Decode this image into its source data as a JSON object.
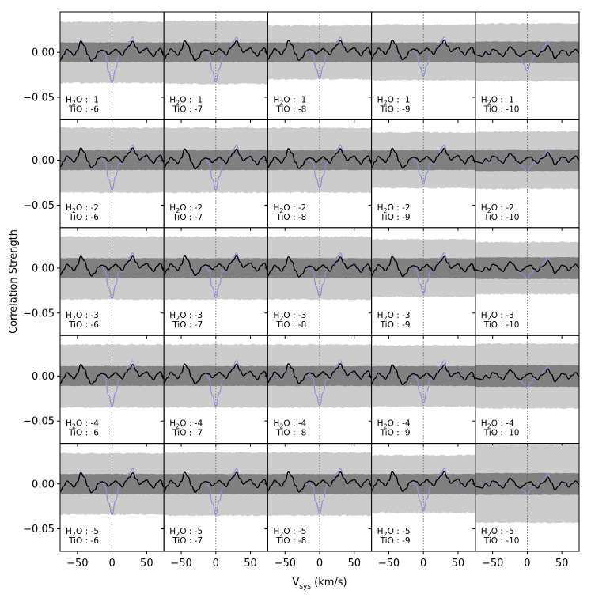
{
  "chart_data": {
    "type": "line",
    "grid": {
      "rows": 5,
      "cols": 5
    },
    "xlabel": "V",
    "xlabel_subscript": "sys",
    "xlabel_unit": " (km/s)",
    "ylabel": "Correlation Strength",
    "xlim": [
      -75,
      75
    ],
    "ylim": [
      -0.075,
      0.045
    ],
    "xticks": [
      -50,
      0,
      50
    ],
    "xtick_labels": [
      "−50",
      "0",
      "50"
    ],
    "yticks": [
      0.0,
      -0.05
    ],
    "ytick_labels": [
      "0.00",
      "−0.05"
    ],
    "marker_line_x": 0,
    "colors": {
      "outer_band": "#cccccc",
      "inner_band": "#808080",
      "observed_line": "#000000",
      "model_line": "#8f8fd6",
      "marker_line": "#555555"
    },
    "panel_label_prefix_1": "H",
    "panel_label_sub": "2",
    "panel_label_prefix_2": "O : ",
    "panel_label_tio": "TiO : ",
    "row_h2o": [
      "-1",
      "-2",
      "-3",
      "-4",
      "-5"
    ],
    "col_tio": [
      "-6",
      "-7",
      "-8",
      "-9",
      "-10"
    ],
    "outer_band_half_width": [
      [
        0.034,
        0.035,
        0.03,
        0.031,
        0.032
      ],
      [
        0.036,
        0.036,
        0.036,
        0.031,
        0.032
      ],
      [
        0.035,
        0.035,
        0.035,
        0.032,
        0.029
      ],
      [
        0.035,
        0.035,
        0.035,
        0.034,
        0.036
      ],
      [
        0.034,
        0.035,
        0.035,
        0.032,
        0.043
      ]
    ],
    "inner_band_half_width": [
      0.011,
      0.011,
      0.011,
      0.011,
      0.012
    ],
    "model_trough_depth": [
      [
        -0.034,
        -0.033,
        -0.029,
        -0.026,
        -0.021
      ],
      [
        -0.033,
        -0.033,
        -0.031,
        -0.026,
        -0.013
      ],
      [
        -0.034,
        -0.033,
        -0.032,
        -0.028,
        -0.012
      ],
      [
        -0.034,
        -0.034,
        -0.033,
        -0.03,
        -0.014
      ],
      [
        -0.034,
        -0.034,
        -0.033,
        -0.03,
        -0.012
      ]
    ],
    "observed_x": [
      -75,
      -70,
      -65,
      -60,
      -55,
      -50,
      -45,
      -40,
      -35,
      -30,
      -25,
      -20,
      -15,
      -10,
      -5,
      0,
      5,
      10,
      15,
      20,
      25,
      30,
      35,
      40,
      45,
      50,
      55,
      60,
      65,
      70,
      75
    ],
    "observed_y": [
      -0.008,
      -0.002,
      0.004,
      0.001,
      -0.003,
      0.003,
      0.013,
      0.008,
      -0.002,
      -0.009,
      -0.006,
      0.001,
      0.003,
      0.002,
      -0.002,
      0.001,
      0.004,
      0.001,
      -0.003,
      0.004,
      0.008,
      0.013,
      0.006,
      0.0,
      0.003,
      0.005,
      0.0,
      -0.004,
      0.002,
      0.005,
      -0.003
    ],
    "observed_y_last_col": [
      -0.002,
      -0.003,
      -0.004,
      0.001,
      -0.002,
      0.004,
      0.003,
      -0.001,
      -0.004,
      0.002,
      0.007,
      0.004,
      -0.002,
      -0.004,
      -0.001,
      0.002,
      0.003,
      -0.001,
      -0.004,
      0.001,
      0.003,
      0.008,
      0.002,
      -0.006,
      -0.002,
      0.003,
      0.002,
      -0.003,
      0.001,
      0.004,
      0.0
    ]
  }
}
